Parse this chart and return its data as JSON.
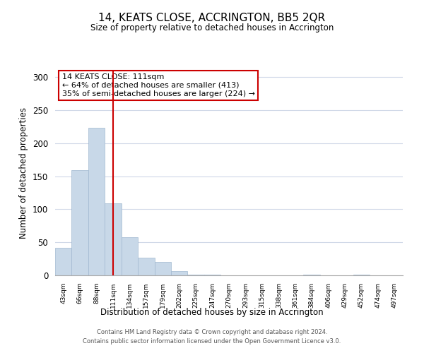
{
  "title": "14, KEATS CLOSE, ACCRINGTON, BB5 2QR",
  "subtitle": "Size of property relative to detached houses in Accrington",
  "xlabel": "Distribution of detached houses by size in Accrington",
  "ylabel": "Number of detached properties",
  "bin_labels": [
    "43sqm",
    "66sqm",
    "88sqm",
    "111sqm",
    "134sqm",
    "157sqm",
    "179sqm",
    "202sqm",
    "225sqm",
    "247sqm",
    "270sqm",
    "293sqm",
    "315sqm",
    "338sqm",
    "361sqm",
    "384sqm",
    "406sqm",
    "429sqm",
    "452sqm",
    "474sqm",
    "497sqm"
  ],
  "bar_values": [
    42,
    159,
    223,
    109,
    58,
    27,
    20,
    6,
    1,
    1,
    0,
    0,
    0,
    0,
    0,
    1,
    0,
    0,
    1,
    0,
    0
  ],
  "bar_color": "#c8d8e8",
  "bar_edge_color": "#a0b8d0",
  "vline_x_index": 3,
  "vline_color": "#cc0000",
  "ylim": [
    0,
    310
  ],
  "yticks": [
    0,
    50,
    100,
    150,
    200,
    250,
    300
  ],
  "annotation_title": "14 KEATS CLOSE: 111sqm",
  "annotation_line1": "← 64% of detached houses are smaller (413)",
  "annotation_line2": "35% of semi-detached houses are larger (224) →",
  "annotation_box_color": "#ffffff",
  "annotation_border_color": "#cc0000",
  "footer_line1": "Contains HM Land Registry data © Crown copyright and database right 2024.",
  "footer_line2": "Contains public sector information licensed under the Open Government Licence v3.0.",
  "background_color": "#ffffff",
  "grid_color": "#d0d8e8"
}
